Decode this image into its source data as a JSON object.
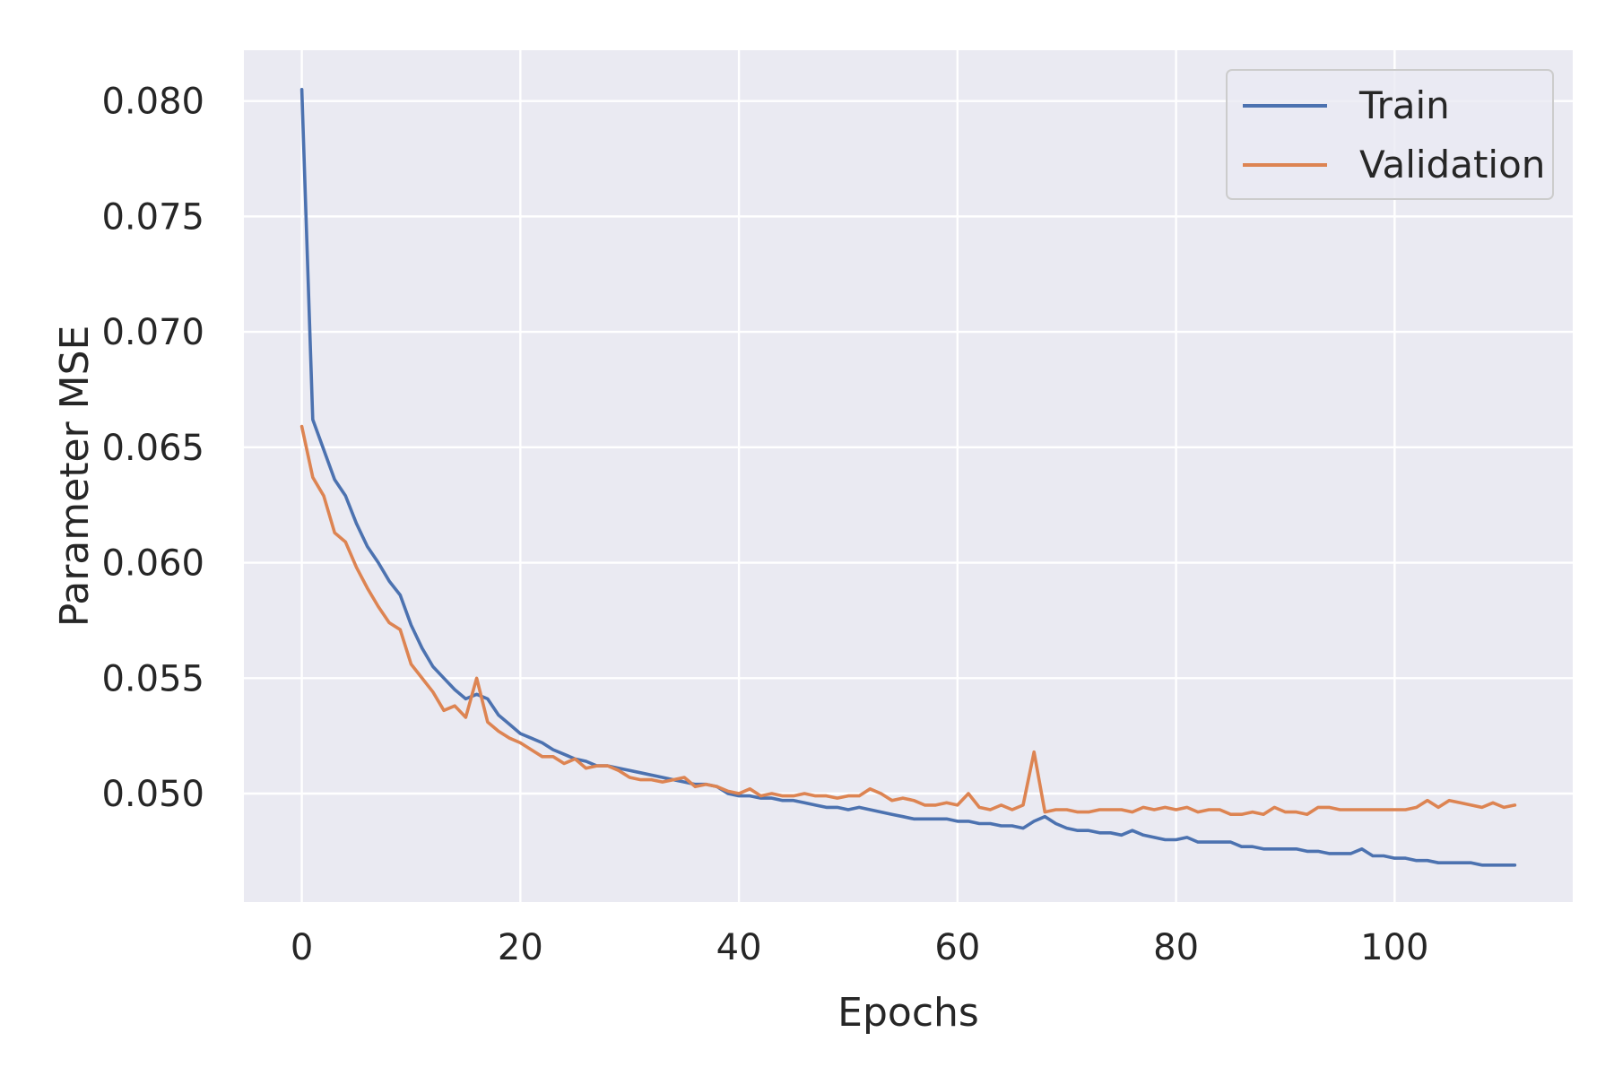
{
  "chart_data": {
    "type": "line",
    "title": "",
    "xlabel": "Epochs",
    "ylabel": "Parameter MSE",
    "xlim": [
      -5.3,
      116.3
    ],
    "ylim": [
      0.0453,
      0.0822
    ],
    "xticks": [
      0,
      20,
      40,
      60,
      80,
      100
    ],
    "yticks": [
      0.05,
      0.055,
      0.06,
      0.065,
      0.07,
      0.075,
      0.08
    ],
    "ytick_labels": [
      "0.050",
      "0.055",
      "0.060",
      "0.065",
      "0.070",
      "0.075",
      "0.080"
    ],
    "grid": true,
    "legend_position": "top-right",
    "x_start": 0,
    "series": [
      {
        "name": "Train",
        "color": "#4c72b0",
        "values": [
          0.0805,
          0.0662,
          0.0649,
          0.0636,
          0.0629,
          0.0617,
          0.0607,
          0.06,
          0.0592,
          0.0586,
          0.0573,
          0.0563,
          0.0555,
          0.055,
          0.0545,
          0.0541,
          0.0543,
          0.0541,
          0.0534,
          0.053,
          0.0526,
          0.0524,
          0.0522,
          0.0519,
          0.0517,
          0.0515,
          0.0514,
          0.0512,
          0.0512,
          0.0511,
          0.051,
          0.0509,
          0.0508,
          0.0507,
          0.0506,
          0.0505,
          0.0504,
          0.0504,
          0.0503,
          0.05,
          0.0499,
          0.0499,
          0.0498,
          0.0498,
          0.0497,
          0.0497,
          0.0496,
          0.0495,
          0.0494,
          0.0494,
          0.0493,
          0.0494,
          0.0493,
          0.0492,
          0.0491,
          0.049,
          0.0489,
          0.0489,
          0.0489,
          0.0489,
          0.0488,
          0.0488,
          0.0487,
          0.0487,
          0.0486,
          0.0486,
          0.0485,
          0.0488,
          0.049,
          0.0487,
          0.0485,
          0.0484,
          0.0484,
          0.0483,
          0.0483,
          0.0482,
          0.0484,
          0.0482,
          0.0481,
          0.048,
          0.048,
          0.0481,
          0.0479,
          0.0479,
          0.0479,
          0.0479,
          0.0477,
          0.0477,
          0.0476,
          0.0476,
          0.0476,
          0.0476,
          0.0475,
          0.0475,
          0.0474,
          0.0474,
          0.0474,
          0.0476,
          0.0473,
          0.0473,
          0.0472,
          0.0472,
          0.0471,
          0.0471,
          0.047,
          0.047,
          0.047,
          0.047,
          0.0469,
          0.0469,
          0.0469,
          0.0469
        ]
      },
      {
        "name": "Validation",
        "color": "#dd8452",
        "values": [
          0.0659,
          0.0637,
          0.0629,
          0.0613,
          0.0609,
          0.0598,
          0.0589,
          0.0581,
          0.0574,
          0.0571,
          0.0556,
          0.055,
          0.0544,
          0.0536,
          0.0538,
          0.0533,
          0.055,
          0.0531,
          0.0527,
          0.0524,
          0.0522,
          0.0519,
          0.0516,
          0.0516,
          0.0513,
          0.0515,
          0.0511,
          0.0512,
          0.0512,
          0.051,
          0.0507,
          0.0506,
          0.0506,
          0.0505,
          0.0506,
          0.0507,
          0.0503,
          0.0504,
          0.0503,
          0.0501,
          0.05,
          0.0502,
          0.0499,
          0.05,
          0.0499,
          0.0499,
          0.05,
          0.0499,
          0.0499,
          0.0498,
          0.0499,
          0.0499,
          0.0502,
          0.05,
          0.0497,
          0.0498,
          0.0497,
          0.0495,
          0.0495,
          0.0496,
          0.0495,
          0.05,
          0.0494,
          0.0493,
          0.0495,
          0.0493,
          0.0495,
          0.0518,
          0.0492,
          0.0493,
          0.0493,
          0.0492,
          0.0492,
          0.0493,
          0.0493,
          0.0493,
          0.0492,
          0.0494,
          0.0493,
          0.0494,
          0.0493,
          0.0494,
          0.0492,
          0.0493,
          0.0493,
          0.0491,
          0.0491,
          0.0492,
          0.0491,
          0.0494,
          0.0492,
          0.0492,
          0.0491,
          0.0494,
          0.0494,
          0.0493,
          0.0493,
          0.0493,
          0.0493,
          0.0493,
          0.0493,
          0.0493,
          0.0494,
          0.0497,
          0.0494,
          0.0497,
          0.0496,
          0.0495,
          0.0494,
          0.0496,
          0.0494,
          0.0495
        ]
      }
    ]
  }
}
